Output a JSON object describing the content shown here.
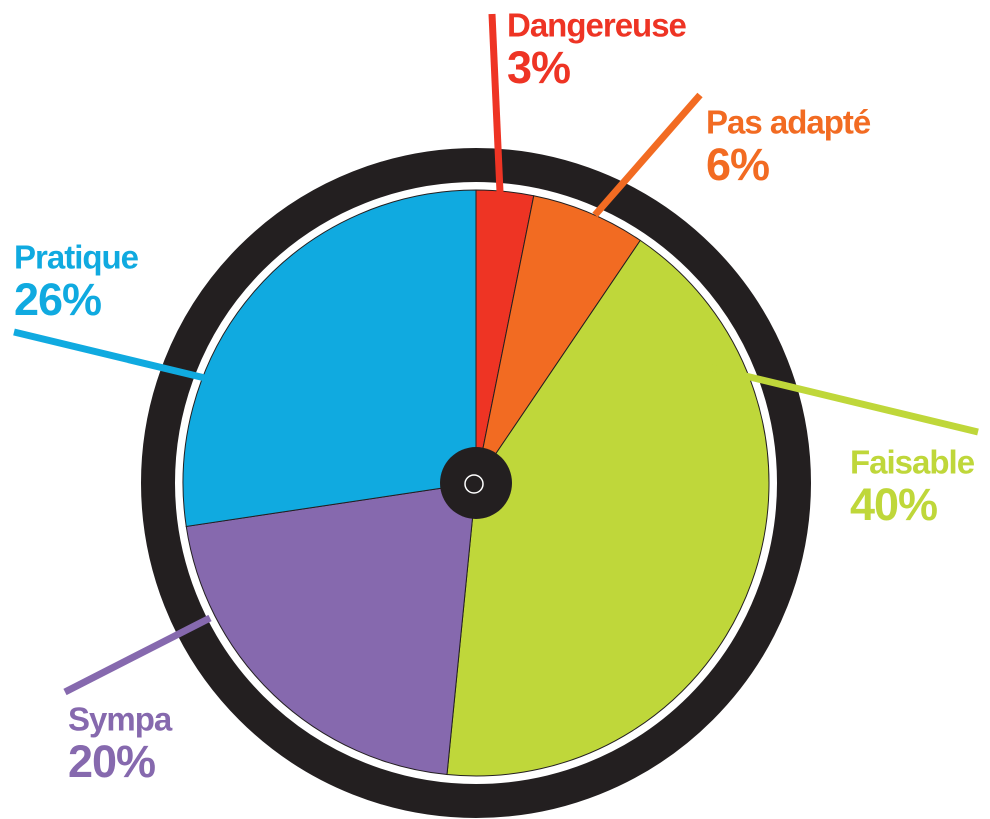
{
  "chart_data": {
    "type": "pie",
    "categories": [
      "Dangereuse",
      "Pas adapté",
      "Faisable",
      "Sympa",
      "Pratique"
    ],
    "values": [
      3,
      6,
      40,
      20,
      26
    ],
    "value_labels": [
      "3%",
      "6%",
      "40%",
      "20%",
      "26%"
    ],
    "colors": [
      "#ee3424",
      "#f26b22",
      "#bfd73a",
      "#8669ae",
      "#10aae0"
    ]
  }
}
